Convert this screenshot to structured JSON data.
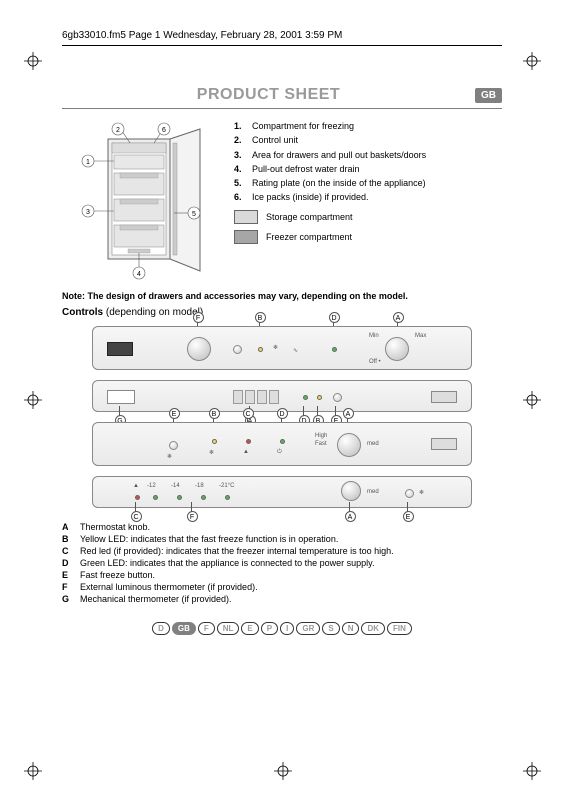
{
  "crop_color": "#000000",
  "header": {
    "file_info": "6gb33010.fm5  Page 1  Wednesday, February 28, 2001  3:59 PM"
  },
  "title": "PRODUCT SHEET",
  "badge": "GB",
  "parts": [
    {
      "num": "1.",
      "text": "Compartment for freezing"
    },
    {
      "num": "2.",
      "text": "Control unit"
    },
    {
      "num": "3.",
      "text": "Area for drawers and pull out baskets/doors"
    },
    {
      "num": "4.",
      "text": "Pull-out defrost water drain"
    },
    {
      "num": "5.",
      "text": "Rating plate (on the inside of the appliance)"
    },
    {
      "num": "6.",
      "text": "Ice packs (inside) if provided."
    }
  ],
  "legend_storage": {
    "color": "#d9d9d9",
    "label": "Storage compartment"
  },
  "legend_freezer": {
    "color": "#a6a6a6",
    "label": "Freezer compartment"
  },
  "note": "Note: The design of drawers and accessories may vary, depending on the model.",
  "controls_heading_bold": "Controls",
  "controls_heading_rest": " (depending on model)",
  "panel_labels": {
    "A": "A",
    "B": "B",
    "C": "C",
    "D": "D",
    "E": "E",
    "F": "F",
    "G": "G"
  },
  "panel1_tiny": {
    "min": "Min",
    "max": "Max",
    "off": "Off •"
  },
  "panel3_tiny": {
    "high": "High",
    "med": "med",
    "fast": "Fast"
  },
  "panel4_tiny": {
    "med": "med",
    "t1": "-12",
    "t2": "-14",
    "t3": "-18",
    "t4": "-21°C"
  },
  "led_colors": {
    "yellow": "#f2d94a",
    "red": "#d94a4a",
    "green": "#5ab35a"
  },
  "controls_legend": [
    {
      "k": "A",
      "t": "Thermostat knob."
    },
    {
      "k": "B",
      "t": "Yellow LED: indicates that the fast freeze function is in operation."
    },
    {
      "k": "C",
      "t": "Red led (if provided): indicates that the freezer internal temperature is too high."
    },
    {
      "k": "D",
      "t": "Green LED: indicates that the appliance is connected to the power supply."
    },
    {
      "k": "E",
      "t": "Fast freeze button."
    },
    {
      "k": "F",
      "t": "External luminous thermometer (if provided)."
    },
    {
      "k": "G",
      "t": "Mechanical thermometer (if provided)."
    }
  ],
  "languages": [
    "D",
    "GB",
    "F",
    "NL",
    "E",
    "P",
    "I",
    "GR",
    "S",
    "N",
    "DK",
    "FIN"
  ],
  "language_active": "GB",
  "diagram_callouts": [
    "1",
    "2",
    "3",
    "4",
    "5",
    "6"
  ],
  "colors": {
    "title_gray": "#9a9a9a",
    "rule_gray": "#808080",
    "panel_border": "#888888",
    "panel_bg_top": "#f6f6f6",
    "panel_bg_bot": "#eaeaea"
  }
}
